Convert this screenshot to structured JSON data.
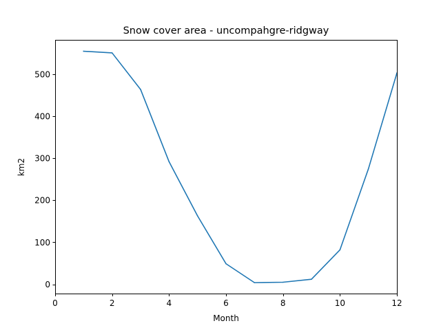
{
  "chart_data": {
    "type": "line",
    "title": "Snow cover area - uncompahgre-ridgway",
    "xlabel": "Month",
    "ylabel": "km2",
    "xlim": [
      0,
      12
    ],
    "ylim": [
      -22,
      582
    ],
    "xticks": [
      0,
      2,
      4,
      6,
      8,
      10,
      12
    ],
    "yticks": [
      0,
      100,
      200,
      300,
      400,
      500
    ],
    "grid": false,
    "series": [
      {
        "color": "#1f77b4",
        "x": [
          1,
          2,
          3,
          4,
          5,
          6,
          7,
          8,
          9,
          10,
          11,
          12
        ],
        "y": [
          555,
          551,
          464,
          292,
          163,
          49,
          4,
          5,
          12,
          82,
          275,
          503
        ]
      }
    ]
  }
}
